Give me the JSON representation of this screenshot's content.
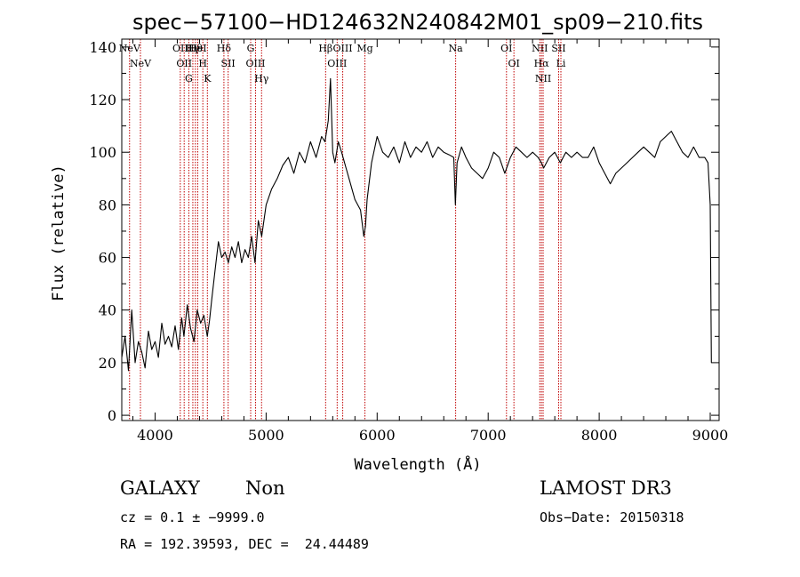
{
  "chart_data": {
    "type": "line",
    "title": "spec−57100−HD124632N240842M01_sp09−210.fits",
    "xlabel": "Wavelength (Å)",
    "ylabel": "Flux (relative)",
    "xlim": [
      3700,
      9080
    ],
    "ylim": [
      -2,
      143
    ],
    "xticks": [
      4000,
      5000,
      6000,
      7000,
      8000,
      9000
    ],
    "yticks": [
      0,
      20,
      40,
      60,
      80,
      100,
      120,
      140
    ],
    "grid": false,
    "series": [
      {
        "color": "#000000",
        "x": [
          3700,
          3730,
          3760,
          3790,
          3820,
          3850,
          3880,
          3910,
          3940,
          3970,
          4000,
          4030,
          4060,
          4090,
          4120,
          4150,
          4180,
          4210,
          4240,
          4260,
          4290,
          4320,
          4350,
          4380,
          4410,
          4440,
          4470,
          4490,
          4510,
          4540,
          4570,
          4600,
          4630,
          4660,
          4690,
          4720,
          4750,
          4780,
          4810,
          4840,
          4870,
          4900,
          4930,
          4960,
          5000,
          5050,
          5100,
          5150,
          5200,
          5250,
          5300,
          5350,
          5400,
          5450,
          5500,
          5530,
          5560,
          5580,
          5600,
          5620,
          5650,
          5680,
          5720,
          5760,
          5800,
          5850,
          5880,
          5895,
          5910,
          5950,
          6000,
          6050,
          6100,
          6150,
          6200,
          6250,
          6300,
          6350,
          6400,
          6450,
          6500,
          6550,
          6600,
          6650,
          6690,
          6705,
          6720,
          6760,
          6800,
          6850,
          6900,
          6950,
          7000,
          7050,
          7100,
          7150,
          7200,
          7250,
          7300,
          7350,
          7400,
          7450,
          7480,
          7500,
          7550,
          7600,
          7650,
          7700,
          7750,
          7800,
          7850,
          7900,
          7950,
          8000,
          8050,
          8100,
          8150,
          8200,
          8250,
          8300,
          8350,
          8400,
          8450,
          8500,
          8550,
          8600,
          8650,
          8700,
          8750,
          8800,
          8850,
          8900,
          8950,
          8980,
          9000,
          9010
        ],
        "y": [
          22,
          30,
          17,
          40,
          20,
          28,
          24,
          18,
          32,
          25,
          28,
          22,
          35,
          27,
          30,
          26,
          34,
          25,
          37,
          30,
          42,
          33,
          28,
          40,
          35,
          38,
          30,
          36,
          44,
          55,
          66,
          60,
          62,
          58,
          64,
          60,
          66,
          58,
          63,
          60,
          68,
          58,
          74,
          68,
          80,
          86,
          90,
          95,
          98,
          92,
          100,
          96,
          104,
          98,
          106,
          104,
          112,
          128,
          100,
          96,
          104,
          100,
          94,
          88,
          82,
          78,
          68,
          72,
          82,
          96,
          106,
          100,
          98,
          102,
          96,
          104,
          98,
          102,
          100,
          104,
          98,
          102,
          100,
          99,
          98,
          80,
          96,
          102,
          98,
          94,
          92,
          90,
          94,
          100,
          98,
          92,
          98,
          102,
          100,
          98,
          100,
          98,
          96,
          94,
          98,
          100,
          96,
          100,
          98,
          100,
          98,
          98,
          102,
          96,
          92,
          88,
          92,
          94,
          96,
          98,
          100,
          102,
          100,
          98,
          104,
          106,
          108,
          104,
          100,
          98,
          102,
          98,
          98,
          96,
          80,
          20
        ]
      }
    ],
    "lines": [
      {
        "x": 3770,
        "labels": [
          "NeV"
        ]
      },
      {
        "x": 3868,
        "labels": [
          "NeV"
        ]
      },
      {
        "x": 4227,
        "labels": [
          "OII"
        ]
      },
      {
        "x": 4262,
        "labels": [
          "OII"
        ]
      },
      {
        "x": 4304,
        "labels": [
          "G"
        ]
      },
      {
        "x": 4340,
        "labels": [
          "Hγ"
        ]
      },
      {
        "x": 4363,
        "labels": [
          "Hθ"
        ]
      },
      {
        "x": 4384,
        "labels": [
          "HeI"
        ]
      },
      {
        "x": 4430,
        "labels": [
          "H"
        ]
      },
      {
        "x": 4471,
        "labels": [
          "K"
        ]
      },
      {
        "x": 4620,
        "labels": [
          "Hδ"
        ]
      },
      {
        "x": 4658,
        "labels": [
          "SII"
        ]
      },
      {
        "x": 4861,
        "labels": [
          "G"
        ]
      },
      {
        "x": 4905,
        "labels": [
          "OIII"
        ]
      },
      {
        "x": 4959,
        "labels": [
          "Hγ"
        ]
      },
      {
        "x": 5536,
        "labels": [
          "Hβ"
        ]
      },
      {
        "x": 5640,
        "labels": [
          "OIII"
        ]
      },
      {
        "x": 5690,
        "labels": [
          "OIII"
        ]
      },
      {
        "x": 5890,
        "labels": [
          "Mg"
        ]
      },
      {
        "x": 6707,
        "labels": [
          "Na"
        ]
      },
      {
        "x": 7165,
        "labels": [
          "OI"
        ]
      },
      {
        "x": 7232,
        "labels": [
          "OI"
        ]
      },
      {
        "x": 7465,
        "labels": [
          "NII"
        ]
      },
      {
        "x": 7480,
        "labels": [
          "Hα"
        ]
      },
      {
        "x": 7495,
        "labels": [
          "NII"
        ]
      },
      {
        "x": 7635,
        "labels": [
          "SII"
        ]
      },
      {
        "x": 7655,
        "labels": [
          "Li"
        ]
      }
    ]
  },
  "footer": {
    "class_label": "GALAXY",
    "subclass_label": "Non",
    "survey_label": "LAMOST DR3",
    "cz_text": "cz = 0.1 ± −9999.0",
    "obs_date_text": "Obs−Date: 20150318",
    "radec_text": "RA = 192.39593, DEC =  24.44489"
  },
  "colors": {
    "spectrum": "#000000",
    "line_markers": "#c00000",
    "axes": "#000000"
  }
}
